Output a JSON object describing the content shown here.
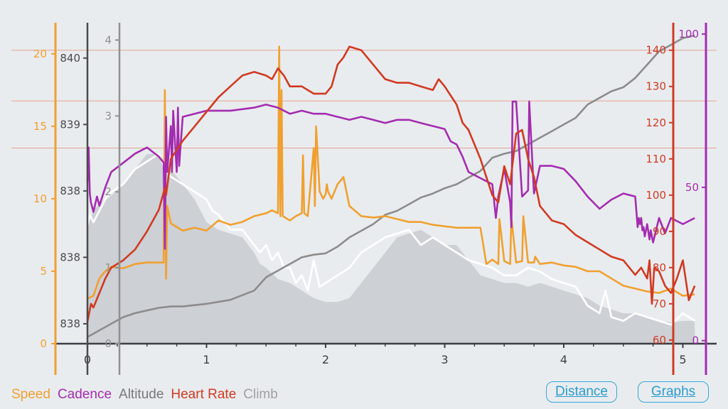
{
  "chart_data": {
    "type": "line",
    "x_axis": {
      "min": 0,
      "max": 5.15,
      "ticks": [
        "0",
        "1",
        "2",
        "3",
        "4",
        "5"
      ],
      "tick_values": [
        0,
        1,
        2,
        3,
        4,
        5
      ]
    },
    "axes": {
      "speed": {
        "color": "#f0a030",
        "min": 0,
        "max": 22,
        "tick_values": [
          0,
          5,
          10,
          15,
          20
        ],
        "ticks": [
          "0",
          "5",
          "10",
          "15",
          "20"
        ]
      },
      "altitude": {
        "color": "#4a4a4a",
        "min": 837.65,
        "max": 840.05,
        "tick_values": [
          837.8,
          838.3,
          838.8,
          839.3,
          839.8
        ],
        "ticks": [
          "838",
          "838",
          "838",
          "839",
          "840"
        ]
      },
      "climb": {
        "color": "#909090",
        "min": 0,
        "max": 4.2,
        "tick_values": [
          0,
          1,
          2,
          3,
          4
        ],
        "ticks": [
          "0",
          "1",
          "2",
          "3",
          "4"
        ]
      },
      "heart_rate": {
        "color": "#d03a22",
        "min": 59,
        "max": 147,
        "tick_values": [
          60,
          70,
          80,
          90,
          100,
          110,
          120,
          130,
          140
        ],
        "ticks": [
          "60",
          "70",
          "80",
          "90",
          "100",
          "110",
          "120",
          "130",
          "140"
        ]
      },
      "cadence": {
        "color": "#a42cb0",
        "min": -1,
        "max": 103,
        "tick_values": [
          0,
          50,
          100
        ],
        "ticks": [
          "0",
          "50",
          "100"
        ]
      }
    },
    "series": [
      {
        "name": "Climb",
        "axis": "climb",
        "color": "#cdd0d4",
        "style": "area",
        "x": [
          0,
          0.05,
          0.1,
          0.2,
          0.3,
          0.4,
          0.5,
          0.6,
          0.7,
          0.8,
          0.9,
          1.0,
          1.1,
          1.2,
          1.3,
          1.4,
          1.45,
          1.5,
          1.6,
          1.7,
          1.8,
          1.9,
          2.0,
          2.1,
          2.2,
          2.3,
          2.4,
          2.5,
          2.6,
          2.7,
          2.8,
          2.9,
          3.0,
          3.1,
          3.2,
          3.3,
          3.4,
          3.5,
          3.6,
          3.7,
          3.8,
          3.9,
          4.0,
          4.1,
          4.2,
          4.3,
          4.4,
          4.5,
          4.6,
          4.7,
          4.8,
          4.9,
          5.0,
          5.1
        ],
        "values": [
          1.55,
          1.75,
          1.85,
          1.95,
          2.1,
          2.3,
          2.5,
          2.5,
          2.3,
          2.1,
          1.9,
          1.6,
          1.5,
          1.45,
          1.4,
          1.2,
          1.05,
          1.0,
          0.85,
          0.8,
          0.7,
          0.6,
          0.55,
          0.55,
          0.6,
          0.8,
          1.0,
          1.2,
          1.4,
          1.45,
          1.5,
          1.4,
          1.3,
          1.3,
          1.1,
          0.9,
          0.85,
          0.8,
          0.8,
          0.75,
          0.8,
          0.75,
          0.7,
          0.65,
          0.6,
          0.5,
          0.45,
          0.4,
          0.4,
          0.35,
          0.3,
          0.28,
          0.3,
          0.3
        ]
      },
      {
        "name": "Climb",
        "axis": "climb",
        "color": "#ffffff",
        "style": "line",
        "x": [
          0,
          0.02,
          0.05,
          0.1,
          0.15,
          0.2,
          0.3,
          0.4,
          0.5,
          0.6,
          0.65,
          0.7,
          0.8,
          0.9,
          1.0,
          1.05,
          1.1,
          1.2,
          1.3,
          1.4,
          1.45,
          1.5,
          1.55,
          1.6,
          1.65,
          1.7,
          1.75,
          1.8,
          1.85,
          1.9,
          1.95,
          2.0,
          2.1,
          2.2,
          2.3,
          2.4,
          2.5,
          2.6,
          2.7,
          2.8,
          2.9,
          3.0,
          3.1,
          3.2,
          3.3,
          3.4,
          3.5,
          3.6,
          3.7,
          3.8,
          3.9,
          4.0,
          4.1,
          4.2,
          4.3,
          4.35,
          4.4,
          4.5,
          4.6,
          4.7,
          4.8,
          4.9,
          5.0,
          5.1
        ],
        "values": [
          1.55,
          1.7,
          1.6,
          1.75,
          1.9,
          2.0,
          2.1,
          2.3,
          2.4,
          2.5,
          2.3,
          2.2,
          2.1,
          2.0,
          1.9,
          1.75,
          1.7,
          1.5,
          1.5,
          1.3,
          1.2,
          1.3,
          1.1,
          1.2,
          1.0,
          1.0,
          0.8,
          0.9,
          0.7,
          1.1,
          0.75,
          0.8,
          0.9,
          1.0,
          1.2,
          1.3,
          1.4,
          1.45,
          1.5,
          1.3,
          1.4,
          1.3,
          1.2,
          1.1,
          1.05,
          1.0,
          0.9,
          0.9,
          1.0,
          0.95,
          0.85,
          0.8,
          0.75,
          0.5,
          0.4,
          0.7,
          0.35,
          0.3,
          0.4,
          0.35,
          0.3,
          0.25,
          0.4,
          0.3
        ]
      },
      {
        "name": "Altitude",
        "axis": "altitude",
        "color": "#8c8c8c",
        "style": "line",
        "x": [
          0,
          0.1,
          0.2,
          0.3,
          0.4,
          0.5,
          0.6,
          0.7,
          0.8,
          0.9,
          1.0,
          1.2,
          1.4,
          1.5,
          1.6,
          1.7,
          1.8,
          1.9,
          2.0,
          2.1,
          2.2,
          2.3,
          2.4,
          2.5,
          2.6,
          2.7,
          2.8,
          2.9,
          3.0,
          3.1,
          3.2,
          3.3,
          3.4,
          3.5,
          3.6,
          3.7,
          3.8,
          3.9,
          4.0,
          4.1,
          4.2,
          4.3,
          4.4,
          4.5,
          4.6,
          4.7,
          4.8,
          4.9,
          5.0,
          5.1
        ],
        "values": [
          837.7,
          837.75,
          837.8,
          837.85,
          837.88,
          837.9,
          837.92,
          837.93,
          837.93,
          837.94,
          837.95,
          837.98,
          838.05,
          838.15,
          838.2,
          838.25,
          838.3,
          838.32,
          838.33,
          838.38,
          838.45,
          838.5,
          838.55,
          838.62,
          838.65,
          838.7,
          838.75,
          838.78,
          838.82,
          838.85,
          838.9,
          838.95,
          839.05,
          839.08,
          839.1,
          839.15,
          839.2,
          839.25,
          839.3,
          839.35,
          839.45,
          839.5,
          839.55,
          839.58,
          839.65,
          839.75,
          839.85,
          839.9,
          839.95,
          839.97
        ]
      },
      {
        "name": "Speed",
        "axis": "speed",
        "color": "#f0a030",
        "style": "line",
        "x": [
          0,
          0.05,
          0.1,
          0.15,
          0.2,
          0.3,
          0.4,
          0.5,
          0.6,
          0.64,
          0.65,
          0.66,
          0.67,
          0.7,
          0.8,
          0.9,
          1.0,
          1.1,
          1.2,
          1.3,
          1.4,
          1.5,
          1.55,
          1.6,
          1.61,
          1.62,
          1.63,
          1.64,
          1.7,
          1.75,
          1.8,
          1.81,
          1.82,
          1.85,
          1.9,
          1.91,
          1.92,
          1.95,
          1.98,
          2.0,
          2.01,
          2.02,
          2.05,
          2.1,
          2.15,
          2.2,
          2.3,
          2.4,
          2.5,
          2.6,
          2.7,
          2.8,
          2.9,
          3.0,
          3.1,
          3.2,
          3.3,
          3.35,
          3.4,
          3.45,
          3.46,
          3.5,
          3.55,
          3.56,
          3.6,
          3.65,
          3.66,
          3.7,
          3.75,
          3.76,
          3.8,
          3.9,
          4.0,
          4.1,
          4.2,
          4.3,
          4.4,
          4.5,
          4.6,
          4.7,
          4.8,
          4.9,
          5.0,
          5.1
        ],
        "values": [
          3.1,
          3.3,
          4.5,
          5.0,
          5.3,
          5.2,
          5.5,
          5.6,
          5.6,
          5.6,
          17.5,
          4.5,
          9.5,
          8.3,
          7.8,
          8.0,
          7.8,
          8.5,
          8.2,
          8.4,
          8.8,
          9.0,
          9.2,
          9.0,
          20.5,
          8.8,
          17.5,
          8.8,
          8.5,
          8.8,
          9.0,
          13.0,
          9.0,
          8.8,
          13.5,
          9.5,
          15.0,
          10.5,
          10.0,
          10.3,
          11.0,
          10.5,
          10.0,
          11.0,
          11.5,
          9.5,
          8.8,
          8.7,
          8.8,
          8.6,
          8.4,
          8.4,
          8.2,
          8.1,
          8.0,
          8.0,
          8.0,
          5.5,
          5.8,
          5.5,
          8.6,
          5.7,
          5.5,
          8.7,
          5.6,
          5.7,
          8.8,
          5.6,
          5.6,
          6.0,
          5.5,
          5.6,
          5.4,
          5.3,
          5.0,
          5.0,
          4.5,
          4.0,
          3.8,
          3.6,
          3.5,
          3.8,
          3.3,
          3.4
        ]
      },
      {
        "name": "Cadence",
        "axis": "cadence",
        "color": "#a42cb0",
        "style": "line",
        "x": [
          0,
          0.01,
          0.02,
          0.03,
          0.05,
          0.08,
          0.1,
          0.15,
          0.2,
          0.3,
          0.4,
          0.5,
          0.6,
          0.64,
          0.65,
          0.66,
          0.67,
          0.7,
          0.71,
          0.72,
          0.75,
          0.76,
          0.77,
          0.8,
          0.9,
          1.0,
          1.2,
          1.4,
          1.5,
          1.6,
          1.7,
          1.8,
          1.9,
          2.0,
          2.1,
          2.2,
          2.3,
          2.4,
          2.5,
          2.6,
          2.7,
          2.8,
          2.9,
          3.0,
          3.05,
          3.1,
          3.15,
          3.2,
          3.3,
          3.4,
          3.43,
          3.45,
          3.5,
          3.55,
          3.56,
          3.57,
          3.6,
          3.65,
          3.7,
          3.71,
          3.75,
          3.8,
          3.9,
          4.0,
          4.1,
          4.2,
          4.3,
          4.4,
          4.5,
          4.6,
          4.62,
          4.63,
          4.64,
          4.65,
          4.66,
          4.67,
          4.68,
          4.7,
          4.72,
          4.73,
          4.75,
          4.8,
          4.85,
          4.9,
          5.0,
          5.1
        ],
        "values": [
          52,
          63,
          48,
          45,
          42,
          47,
          44,
          50,
          55,
          58,
          61,
          63,
          60,
          58,
          30,
          73,
          55,
          70,
          55,
          75,
          55,
          76,
          57,
          73,
          74,
          75,
          75,
          76,
          77,
          76,
          74,
          75,
          74,
          74,
          73,
          72,
          73,
          72,
          71,
          72,
          72,
          71,
          70,
          69,
          65,
          64,
          60,
          55,
          53,
          51,
          40,
          47,
          56,
          45,
          37,
          78,
          78,
          47,
          49,
          78,
          48,
          57,
          57,
          56,
          52,
          47,
          43,
          46,
          48,
          47,
          37,
          40,
          38,
          40,
          36,
          37,
          34,
          38,
          33,
          36,
          32,
          40,
          35,
          40,
          38,
          40
        ]
      },
      {
        "name": "Heart Rate",
        "axis": "heart_rate",
        "color": "#d03a22",
        "style": "line",
        "x": [
          0,
          0.03,
          0.05,
          0.1,
          0.15,
          0.2,
          0.3,
          0.4,
          0.5,
          0.6,
          0.65,
          0.66,
          0.7,
          0.8,
          0.9,
          1.0,
          1.1,
          1.2,
          1.3,
          1.4,
          1.5,
          1.55,
          1.6,
          1.65,
          1.7,
          1.8,
          1.9,
          2.0,
          2.05,
          2.1,
          2.15,
          2.2,
          2.3,
          2.4,
          2.5,
          2.6,
          2.7,
          2.8,
          2.9,
          2.95,
          3.0,
          3.1,
          3.15,
          3.2,
          3.3,
          3.35,
          3.4,
          3.45,
          3.5,
          3.55,
          3.6,
          3.65,
          3.7,
          3.75,
          3.8,
          3.85,
          3.9,
          4.0,
          4.1,
          4.2,
          4.3,
          4.4,
          4.5,
          4.6,
          4.65,
          4.7,
          4.72,
          4.74,
          4.76,
          4.8,
          4.85,
          4.9,
          4.95,
          5.0,
          5.05,
          5.1
        ],
        "values": [
          65,
          70,
          69,
          73,
          77,
          80,
          82,
          85,
          90,
          96,
          102,
          100,
          110,
          115,
          119,
          123,
          127,
          130,
          133,
          134,
          133,
          132,
          135,
          133,
          130,
          130,
          128,
          128,
          130,
          136,
          138,
          141,
          140,
          136,
          132,
          131,
          131,
          130,
          129,
          132,
          130,
          125,
          120,
          118,
          110,
          105,
          100,
          98,
          108,
          103,
          117,
          118,
          110,
          105,
          97,
          95,
          93,
          92,
          89,
          87,
          85,
          83,
          82,
          78,
          80,
          77,
          82,
          70,
          80,
          79,
          75,
          73,
          77,
          82,
          71,
          75
        ]
      }
    ],
    "legend": [
      "Speed",
      "Cadence",
      "Altitude",
      "Heart Rate",
      "Climb"
    ]
  },
  "legend": [
    {
      "label": "Speed",
      "color": "#f0a030"
    },
    {
      "label": "Cadence",
      "color": "#a42cb0"
    },
    {
      "label": "Altitude",
      "color": "#777777"
    },
    {
      "label": "Heart Rate",
      "color": "#d03a22"
    },
    {
      "label": "Climb",
      "color": "#a0a0a0"
    }
  ],
  "buttons": {
    "distance": "Distance",
    "graphs": "Graphs"
  }
}
